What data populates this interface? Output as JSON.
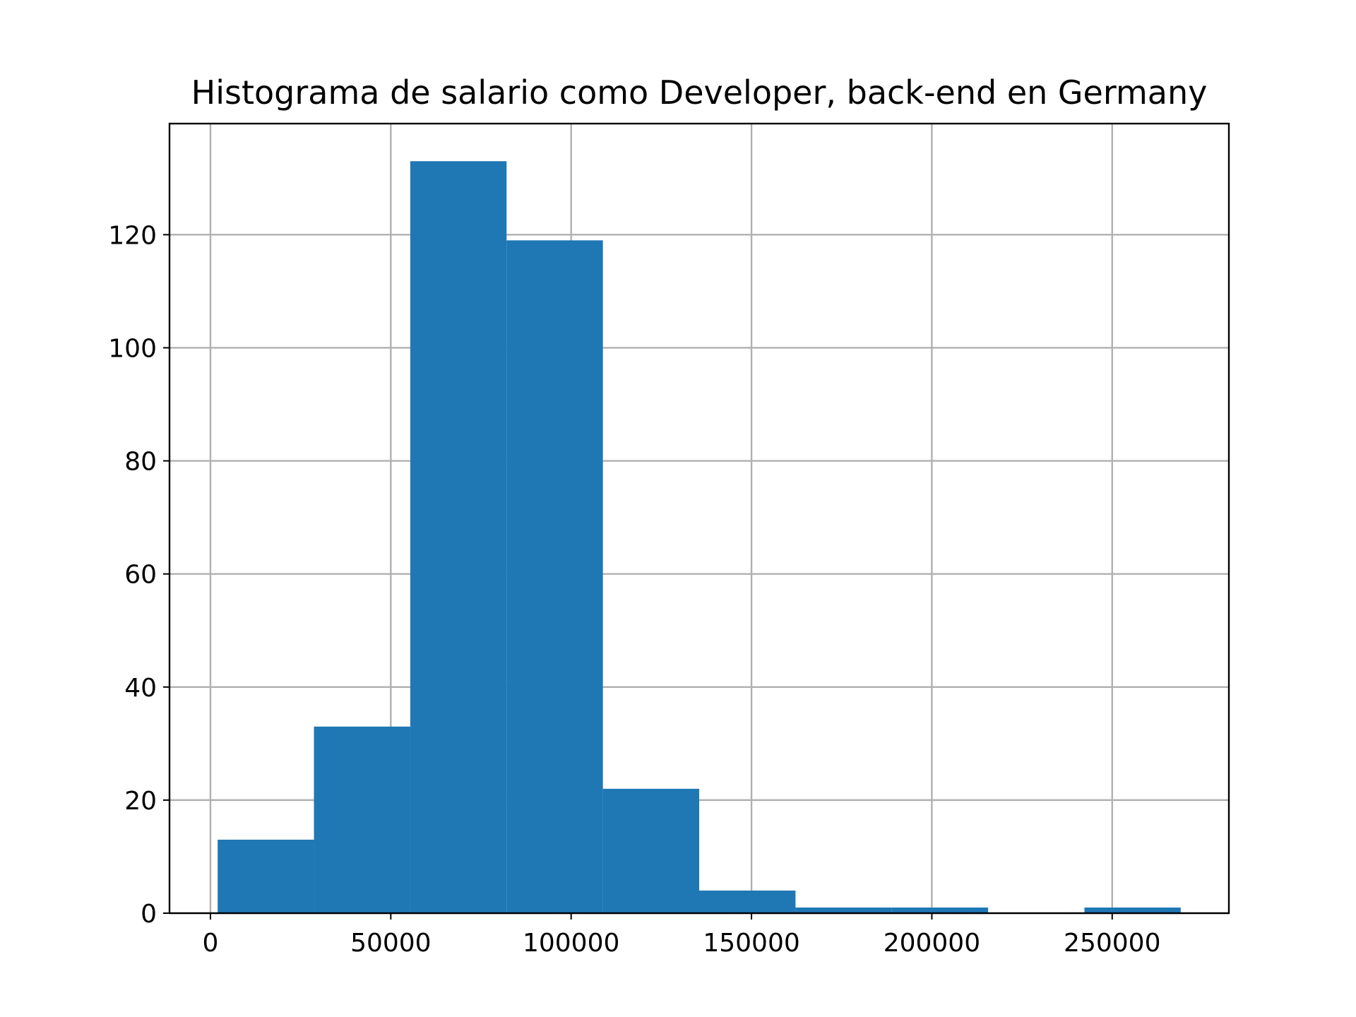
{
  "chart_data": {
    "type": "bar",
    "title": "Histograma de salario como Developer, back-end en Germany",
    "xlabel": "",
    "ylabel": "",
    "bins": [
      {
        "start": 2000,
        "end": 28700,
        "count": 13
      },
      {
        "start": 28700,
        "end": 55400,
        "count": 33
      },
      {
        "start": 55400,
        "end": 82100,
        "count": 133
      },
      {
        "start": 82100,
        "end": 108800,
        "count": 119
      },
      {
        "start": 108800,
        "end": 135500,
        "count": 22
      },
      {
        "start": 135500,
        "end": 162200,
        "count": 4
      },
      {
        "start": 162200,
        "end": 188900,
        "count": 1
      },
      {
        "start": 188900,
        "end": 215600,
        "count": 1
      },
      {
        "start": 215600,
        "end": 242300,
        "count": 0
      },
      {
        "start": 242300,
        "end": 269000,
        "count": 1
      }
    ],
    "xlim": [
      -11350,
      282350
    ],
    "ylim": [
      0,
      139.65
    ],
    "xticks": [
      0,
      50000,
      100000,
      150000,
      200000,
      250000
    ],
    "xtick_labels": [
      "0",
      "50000",
      "100000",
      "150000",
      "200000",
      "250000"
    ],
    "yticks": [
      0,
      20,
      40,
      60,
      80,
      100,
      120
    ],
    "ytick_labels": [
      "0",
      "20",
      "40",
      "60",
      "80",
      "100",
      "120"
    ],
    "grid": true,
    "bar_color": "#1f77b4",
    "grid_color": "#b0b0b0"
  }
}
